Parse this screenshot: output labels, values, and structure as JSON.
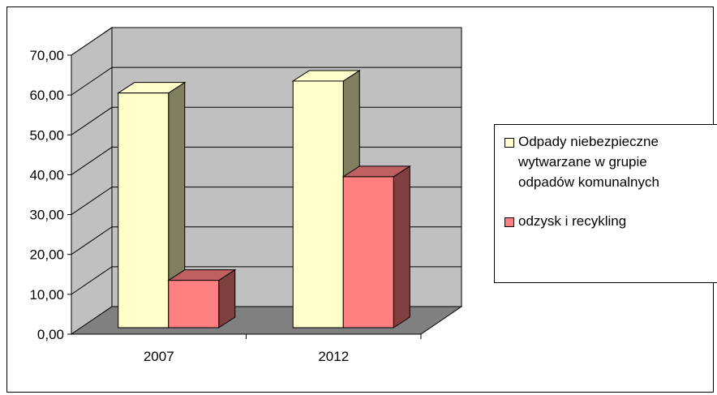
{
  "chart_data": {
    "type": "bar",
    "style": "3d-clustered",
    "categories": [
      "2007",
      "2012"
    ],
    "series": [
      {
        "name": "Odpady niebezpieczne\nwytwarzane w grupie\nodpadów komunalnych",
        "values": [
          60.5,
          63.5
        ],
        "color": "#FFFFCC"
      },
      {
        "name": "odzysk i recykling",
        "values": [
          13.5,
          39.5
        ],
        "color": "#FF8080"
      }
    ],
    "ylim": [
      0,
      70
    ],
    "yticks": [
      "0,00",
      "10,00",
      "20,00",
      "30,00",
      "40,00",
      "50,00",
      "60,00",
      "70,00"
    ],
    "grid": true,
    "legend_position": "right",
    "colors": {
      "wall": "#C0C0C0",
      "floor": "#808080",
      "yellow_side": "#808060",
      "red_side": "#804040",
      "red_top": "#C06060"
    }
  }
}
